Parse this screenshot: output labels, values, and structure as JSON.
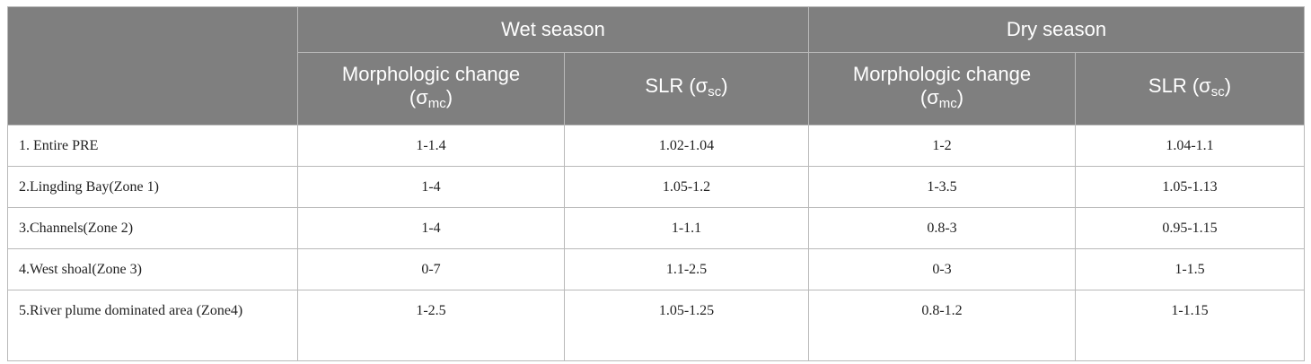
{
  "header": {
    "groups": [
      "Wet season",
      "Dry season"
    ],
    "columns": [
      {
        "base": "Morphologic change",
        "sym_open": "(σ",
        "sub": "mc",
        "sym_close": ")"
      },
      {
        "base": "SLR",
        "sym_open": "(σ",
        "sub": "sc",
        "sym_close": ")"
      },
      {
        "base": "Morphologic change",
        "sym_open": "(σ",
        "sub": "mc",
        "sym_close": ")"
      },
      {
        "base": "SLR",
        "sym_open": "(σ",
        "sub": "sc",
        "sym_close": ")"
      }
    ]
  },
  "rows": [
    {
      "label": "1. Entire PRE",
      "values": [
        "1-1.4",
        "1.02-1.04",
        "1-2",
        "1.04-1.1"
      ]
    },
    {
      "label": "2.Lingding Bay(Zone 1)",
      "values": [
        "1-4",
        "1.05-1.2",
        "1-3.5",
        "1.05-1.13"
      ]
    },
    {
      "label": "3.Channels(Zone 2)",
      "values": [
        "1-4",
        "1-1.1",
        "0.8-3",
        "0.95-1.15"
      ]
    },
    {
      "label": "4.West shoal(Zone 3)",
      "values": [
        "0-7",
        "1.1-2.5",
        "0-3",
        "1-1.5"
      ]
    },
    {
      "label": "5.River plume dominated area (Zone4)",
      "values": [
        "1-2.5",
        "1.05-1.25",
        "0.8-1.2",
        "1-1.15"
      ]
    }
  ]
}
